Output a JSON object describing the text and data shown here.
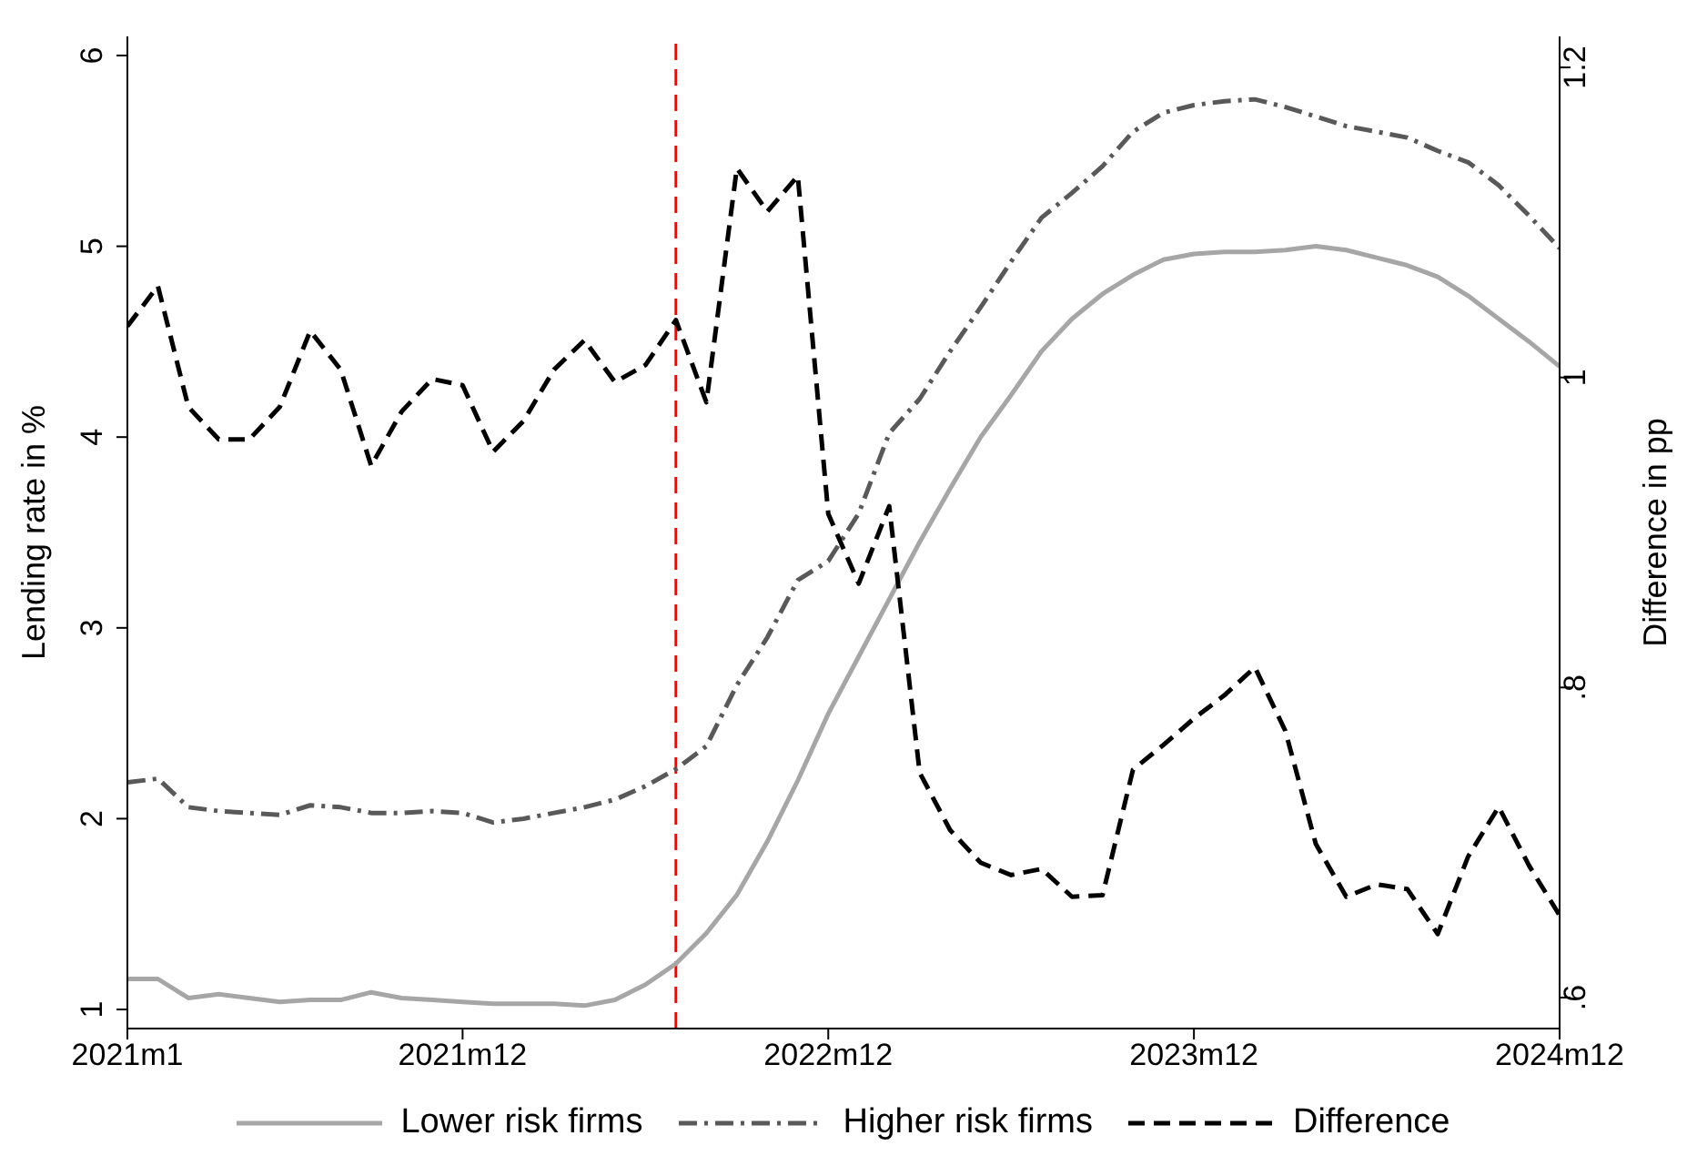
{
  "chart_data": {
    "type": "line",
    "xlabel": null,
    "ylabel": "Lending rate in %",
    "y2label": "Difference in pp",
    "x": [
      "2021-01",
      "2021-02",
      "2021-03",
      "2021-04",
      "2021-05",
      "2021-06",
      "2021-07",
      "2021-08",
      "2021-09",
      "2021-10",
      "2021-11",
      "2021-12",
      "2022-01",
      "2022-02",
      "2022-03",
      "2022-04",
      "2022-05",
      "2022-06",
      "2022-07",
      "2022-08",
      "2022-09",
      "2022-10",
      "2022-11",
      "2022-12",
      "2023-01",
      "2023-02",
      "2023-03",
      "2023-04",
      "2023-05",
      "2023-06",
      "2023-07",
      "2023-08",
      "2023-09",
      "2023-10",
      "2023-11",
      "2023-12",
      "2024-01",
      "2024-02",
      "2024-03",
      "2024-04",
      "2024-05",
      "2024-06",
      "2024-07",
      "2024-08",
      "2024-09",
      "2024-10",
      "2024-11",
      "2024-12"
    ],
    "series": [
      {
        "name": "Lower risk firms",
        "color": "#a6a6a6",
        "line_style": "solid",
        "values": [
          1.16,
          1.16,
          1.06,
          1.08,
          1.06,
          1.04,
          1.05,
          1.05,
          1.09,
          1.06,
          1.05,
          1.04,
          1.03,
          1.03,
          1.03,
          1.02,
          1.05,
          1.13,
          1.24,
          1.4,
          1.6,
          1.88,
          2.2,
          2.55,
          2.85,
          3.15,
          3.45,
          3.73,
          4.0,
          4.22,
          4.45,
          4.62,
          4.75,
          4.85,
          4.93,
          4.96,
          4.97,
          4.97,
          4.98,
          5.0,
          4.98,
          4.94,
          4.9,
          4.84,
          4.74,
          4.62,
          4.5,
          4.37
        ]
      },
      {
        "name": "Higher risk firms",
        "color": "#595959",
        "line_style": "dashdot",
        "values": [
          2.19,
          2.21,
          2.06,
          2.04,
          2.03,
          2.02,
          2.07,
          2.06,
          2.03,
          2.03,
          2.04,
          2.03,
          1.98,
          2.0,
          2.03,
          2.06,
          2.1,
          2.17,
          2.26,
          2.38,
          2.7,
          2.95,
          3.25,
          3.35,
          3.6,
          4.02,
          4.2,
          4.45,
          4.68,
          4.92,
          5.15,
          5.28,
          5.42,
          5.6,
          5.7,
          5.74,
          5.76,
          5.77,
          5.73,
          5.68,
          5.63,
          5.6,
          5.57,
          5.5,
          5.44,
          5.32,
          5.16,
          4.99
        ]
      },
      {
        "name": "Difference",
        "color": "#000000",
        "line_style": "dashed",
        "axis": "y2",
        "values": [
          1.033,
          1.059,
          0.981,
          0.96,
          0.96,
          0.981,
          1.03,
          1.005,
          0.943,
          0.978,
          0.999,
          0.995,
          0.952,
          0.972,
          1.005,
          1.024,
          0.997,
          1.008,
          1.037,
          0.984,
          1.135,
          1.107,
          1.13,
          0.912,
          0.867,
          0.917,
          0.745,
          0.708,
          0.687,
          0.679,
          0.683,
          0.665,
          0.666,
          0.747,
          0.763,
          0.78,
          0.795,
          0.813,
          0.772,
          0.699,
          0.665,
          0.673,
          0.67,
          0.641,
          0.691,
          0.723,
          0.685,
          0.653
        ]
      }
    ],
    "xlim": [
      "2021-01",
      "2024-12"
    ],
    "xticks": [
      {
        "value": "2021-01",
        "label": "2021m1"
      },
      {
        "value": "2021-12",
        "label": "2021m12"
      },
      {
        "value": "2022-12",
        "label": "2022m12"
      },
      {
        "value": "2023-12",
        "label": "2023m12"
      },
      {
        "value": "2024-12",
        "label": "2024m12"
      }
    ],
    "ylim": [
      0.9,
      6.1
    ],
    "yticks": [
      1,
      2,
      3,
      4,
      5,
      6
    ],
    "y2lim": [
      0.58,
      1.22
    ],
    "y2ticks": [
      {
        "value": 0.6,
        "label": ".6"
      },
      {
        "value": 0.8,
        "label": ".8"
      },
      1,
      1.2
    ],
    "ref_lines": [
      {
        "axis": "x",
        "value": "2022-07",
        "color": "#ff0000",
        "line_style": "dashed"
      }
    ],
    "legend": "bottom",
    "grid": false,
    "marker": "none"
  }
}
